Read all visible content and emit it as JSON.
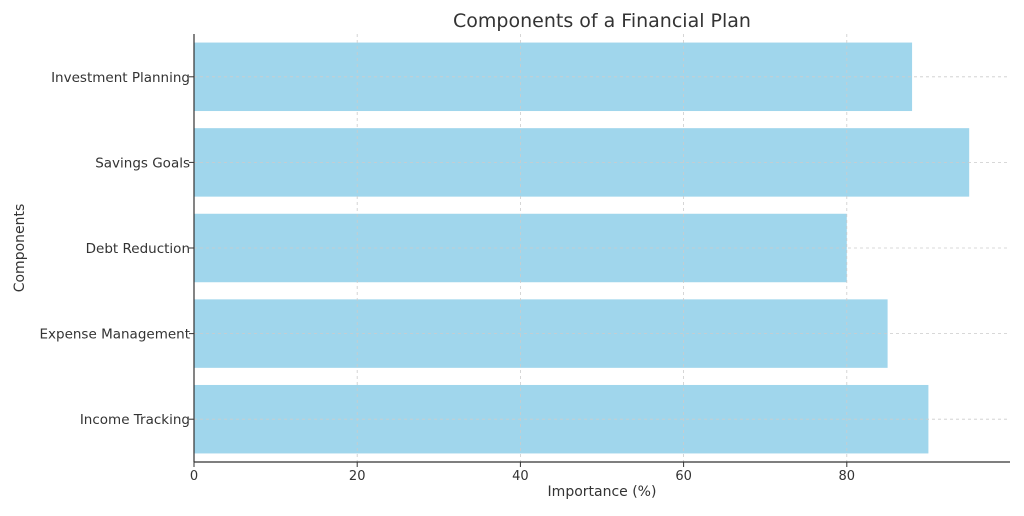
{
  "chart_data": {
    "type": "bar",
    "orientation": "horizontal",
    "title": "Components of a Financial Plan",
    "xlabel": "Importance (%)",
    "ylabel": "Components",
    "categories": [
      "Income Tracking",
      "Expense Management",
      "Debt Reduction",
      "Savings Goals",
      "Investment Planning"
    ],
    "values": [
      90,
      85,
      80,
      95,
      88
    ],
    "xlim": [
      0,
      100
    ],
    "xticks": [
      0,
      20,
      40,
      60,
      80
    ],
    "grid": true,
    "bar_color": "#a0d6ec",
    "grid_color": "#cccccc"
  }
}
